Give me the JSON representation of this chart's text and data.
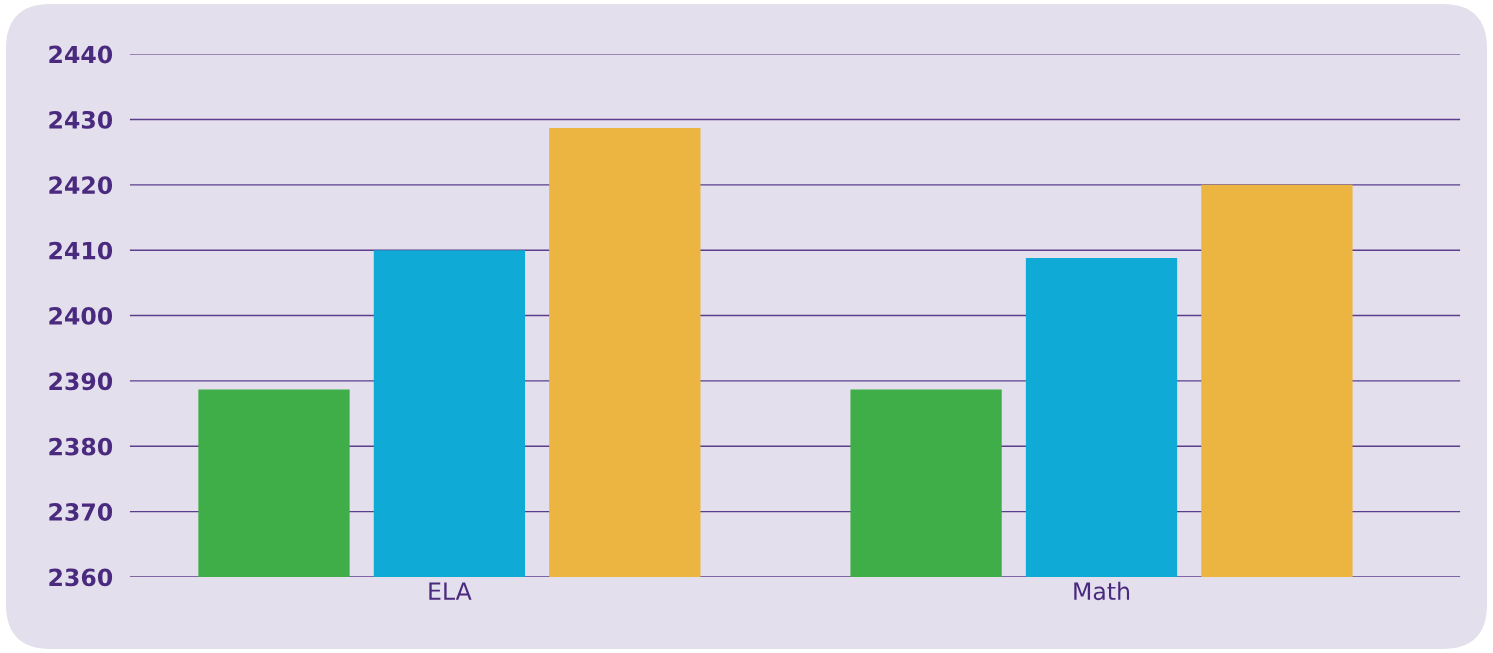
{
  "chart_data": {
    "type": "bar",
    "categories": [
      "ELA",
      "Math"
    ],
    "series": [
      {
        "color": "#3fae49",
        "values": [
          2388.7,
          2388.7
        ]
      },
      {
        "color": "#0fabd6",
        "values": [
          2410,
          2408.8
        ]
      },
      {
        "color": "#ecb441",
        "values": [
          2428.7,
          2420
        ]
      }
    ],
    "ylim": [
      2360,
      2440
    ],
    "yticks": [
      2360,
      2370,
      2380,
      2390,
      2400,
      2410,
      2420,
      2430,
      2440
    ],
    "grid": "y"
  }
}
